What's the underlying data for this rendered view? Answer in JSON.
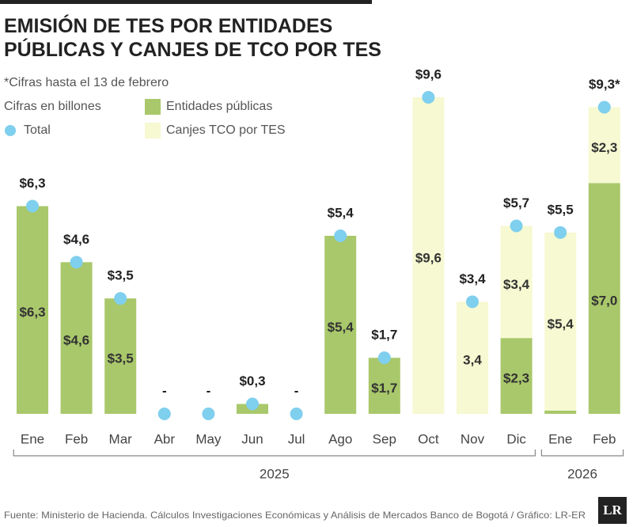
{
  "chart_data": {
    "type": "stacked_bar",
    "title": "EMISIÓN DE TES POR ENTIDADES\nPÚBLICAS Y CANJES DE TCO POR TES",
    "notes": [
      "*Cifras hasta el 13 de febrero",
      "Cifras en billones"
    ],
    "categories": [
      "Ene",
      "Feb",
      "Mar",
      "Abr",
      "May",
      "Jun",
      "Jul",
      "Ago",
      "Sep",
      "Oct",
      "Nov",
      "Dic",
      "Ene",
      "Feb"
    ],
    "years": [
      {
        "label": "2025",
        "count": 12
      },
      {
        "label": "2026",
        "count": 2
      }
    ],
    "series": [
      {
        "name": "Entidades públicas",
        "color": "#a9c86b",
        "values": [
          6.3,
          4.6,
          3.5,
          0,
          0,
          0.3,
          0,
          5.4,
          1.7,
          0,
          0,
          2.3,
          0.1,
          7.0
        ],
        "value_labels": [
          "$6,3",
          "$4,6",
          "$3,5",
          null,
          null,
          null,
          null,
          "$5,4",
          "$1,7",
          null,
          null,
          "$2,3",
          null,
          "$7,0"
        ]
      },
      {
        "name": "Canjes TCO por TES",
        "color": "#f6f9d1",
        "values": [
          0,
          0,
          0,
          0,
          0,
          0,
          0,
          0,
          0,
          9.6,
          3.4,
          3.4,
          5.4,
          2.3
        ],
        "value_labels": [
          null,
          null,
          null,
          null,
          null,
          null,
          null,
          null,
          null,
          "$9,6",
          "3,4",
          "$3,4",
          "$5,4",
          "$2,3"
        ]
      }
    ],
    "total": {
      "name": "Total",
      "color": "#7fcfee",
      "values": [
        6.3,
        4.6,
        3.5,
        0,
        0,
        0.3,
        0,
        5.4,
        1.7,
        9.6,
        3.4,
        5.7,
        5.5,
        9.3
      ],
      "value_labels": [
        "$6,3",
        "$4,6",
        "$3,5",
        "-",
        "-",
        "$0,3",
        "-",
        "$5,4",
        "$1,7",
        "$9,6",
        "$3,4",
        "$5,7",
        "$5,5",
        "$9,3*"
      ]
    },
    "source": "Fuente: Ministerio de Hacienda. Cálculos Investigaciones Económicas y Análisis de Mercados Banco de Bogotá / Gráfico: LR-ER",
    "logo": "LR"
  }
}
